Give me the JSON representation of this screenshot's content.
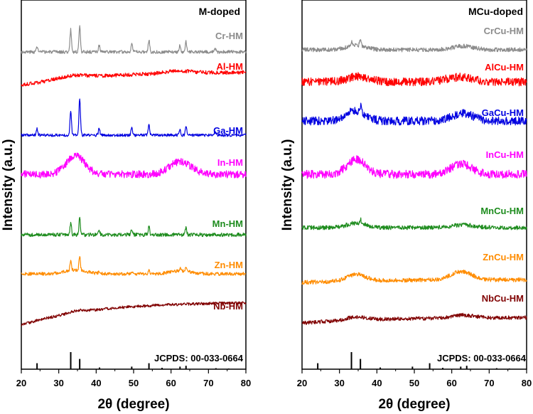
{
  "chart_data": [
    {
      "type": "line",
      "title": "M-doped",
      "xlabel": "2θ (degree)",
      "ylabel": "Intensity (a.u.)",
      "xlim": [
        20,
        80
      ],
      "xticks": [
        "20",
        "30",
        "40",
        "50",
        "60",
        "70",
        "80"
      ],
      "reference_label": "JCPDS: 00-033-0664",
      "series": [
        {
          "name": "Cr-HM",
          "color": "#8c8c8c",
          "baseline": 0.93,
          "slope": 0,
          "noise": 0.35,
          "bumps": [],
          "peaks": [
            [
              24.2,
              0.6
            ],
            [
              33.2,
              2.4
            ],
            [
              35.6,
              2.9
            ],
            [
              40.8,
              0.7
            ],
            [
              49.5,
              1.0
            ],
            [
              54.1,
              1.3
            ],
            [
              62.4,
              0.7
            ],
            [
              64.0,
              1.1
            ],
            [
              71.8,
              0.3
            ]
          ]
        },
        {
          "name": "Al-HM",
          "color": "#ff0000",
          "baseline": 0.58,
          "slope": 1.4,
          "noise": 0.4,
          "bumps": [
            [
              34,
              0.3,
              5
            ],
            [
              62,
              0.25,
              5
            ]
          ],
          "peaks": []
        },
        {
          "name": "Ga-HM",
          "color": "#0000e0",
          "baseline": 0.0,
          "slope": 0,
          "noise": 0.3,
          "bumps": [],
          "peaks": [
            [
              24.2,
              0.7
            ],
            [
              33.2,
              2.7
            ],
            [
              35.6,
              4.0
            ],
            [
              40.8,
              0.7
            ],
            [
              49.5,
              0.9
            ],
            [
              54.1,
              1.1
            ],
            [
              62.4,
              0.6
            ],
            [
              64.0,
              0.9
            ],
            [
              71.8,
              0.3
            ]
          ]
        },
        {
          "name": "In-HM",
          "color": "#ff00ff",
          "baseline": 0.0,
          "slope": 0,
          "noise": 0.8,
          "bumps": [
            [
              34.5,
              2.0,
              3.5
            ],
            [
              62.5,
              1.4,
              4
            ]
          ],
          "peaks": []
        },
        {
          "name": "Mn-HM",
          "color": "#1e8c1e",
          "baseline": 0.0,
          "slope": 0,
          "noise": 0.4,
          "bumps": [],
          "peaks": [
            [
              33.2,
              1.3
            ],
            [
              35.6,
              1.8
            ],
            [
              40.8,
              0.4
            ],
            [
              49.5,
              0.5
            ],
            [
              54.1,
              0.9
            ],
            [
              64.0,
              0.7
            ]
          ]
        },
        {
          "name": "Zn-HM",
          "color": "#ff8c00",
          "baseline": 0.0,
          "slope": 0,
          "noise": 0.35,
          "bumps": [
            [
              34.5,
              0.4,
              4
            ],
            [
              62.5,
              0.3,
              4
            ]
          ],
          "peaks": [
            [
              33.2,
              1.0
            ],
            [
              35.6,
              1.5
            ],
            [
              40.8,
              0.3
            ],
            [
              49.5,
              0.3
            ],
            [
              54.1,
              0.5
            ],
            [
              62.4,
              0.3
            ],
            [
              64.0,
              0.4
            ]
          ]
        },
        {
          "name": "Nb-HM",
          "color": "#800000",
          "baseline": 0.0,
          "slope": 2.4,
          "noise": 0.3,
          "bumps": [
            [
              35,
              0.2,
              3
            ]
          ],
          "peaks": []
        }
      ]
    },
    {
      "type": "line",
      "title": "MCu-doped",
      "xlabel": "2θ (degree)",
      "ylabel": "Intensity (a.u.)",
      "xlim": [
        20,
        80
      ],
      "xticks": [
        "20",
        "30",
        "40",
        "50",
        "60",
        "70",
        "80"
      ],
      "reference_label": "JCPDS: 00-033-0664",
      "series": [
        {
          "name": "CrCu-HM",
          "color": "#8c8c8c",
          "baseline": 0.0,
          "slope": 0,
          "noise": 0.45,
          "bumps": [
            [
              34.5,
              0.5,
              3.5
            ],
            [
              63,
              0.4,
              4
            ]
          ],
          "peaks": [
            [
              33.2,
              0.5
            ],
            [
              35.6,
              0.7
            ]
          ]
        },
        {
          "name": "AlCu-HM",
          "color": "#ff0000",
          "baseline": 0.0,
          "slope": 0,
          "noise": 0.9,
          "bumps": [
            [
              35,
              0.6,
              4
            ],
            [
              62,
              0.5,
              5
            ]
          ],
          "peaks": []
        },
        {
          "name": "GaCu-HM",
          "color": "#0000e0",
          "baseline": 0.0,
          "slope": 0,
          "noise": 0.9,
          "bumps": [
            [
              34.5,
              1.1,
              3.5
            ],
            [
              63,
              0.8,
              4
            ]
          ],
          "peaks": [
            [
              33.2,
              0.4
            ],
            [
              35.6,
              0.6
            ]
          ]
        },
        {
          "name": "InCu-HM",
          "color": "#ff00ff",
          "baseline": 0.0,
          "slope": 0,
          "noise": 0.9,
          "bumps": [
            [
              34.5,
              1.6,
              3.5
            ],
            [
              62.5,
              1.1,
              4
            ]
          ],
          "peaks": []
        },
        {
          "name": "MnCu-HM",
          "color": "#1e8c1e",
          "baseline": 0.0,
          "slope": 0,
          "noise": 0.45,
          "bumps": [
            [
              34.5,
              0.5,
              3.5
            ],
            [
              63,
              0.3,
              4
            ]
          ],
          "peaks": [
            [
              35.6,
              0.5
            ]
          ]
        },
        {
          "name": "ZnCu-HM",
          "color": "#ff8c00",
          "baseline": 0.0,
          "slope": 0.3,
          "noise": 0.45,
          "bumps": [
            [
              34.5,
              0.7,
              3.5
            ],
            [
              62.5,
              0.9,
              4
            ]
          ],
          "peaks": []
        },
        {
          "name": "NbCu-HM",
          "color": "#800000",
          "baseline": 0.0,
          "slope": 0.6,
          "noise": 0.4,
          "bumps": [
            [
              34.5,
              0.35,
              3.5
            ],
            [
              63,
              0.3,
              4
            ]
          ],
          "peaks": []
        }
      ]
    }
  ],
  "reference_peaks": [
    [
      24.2,
      0.35
    ],
    [
      33.2,
      1.0
    ],
    [
      35.6,
      0.6
    ],
    [
      40.9,
      0.1
    ],
    [
      49.5,
      0.15
    ],
    [
      54.1,
      0.35
    ],
    [
      57.6,
      0.08
    ],
    [
      62.4,
      0.15
    ],
    [
      64.0,
      0.2
    ],
    [
      72.0,
      0.06
    ],
    [
      75.4,
      0.04
    ]
  ]
}
